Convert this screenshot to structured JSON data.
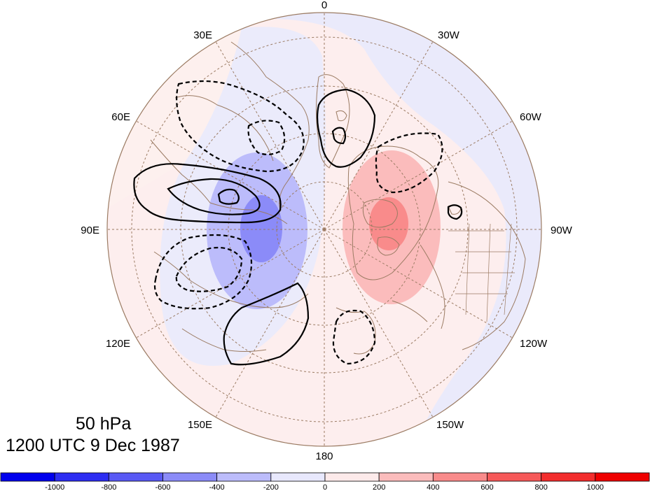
{
  "map": {
    "projection": "north-polar-stereographic",
    "lon_labels": [
      "0",
      "30W",
      "60W",
      "90W",
      "120W",
      "150W",
      "180",
      "150E",
      "120E",
      "90E",
      "60E",
      "30E"
    ],
    "colors": {
      "coast": "#9b7b63",
      "grid": "#9b7b63",
      "contour": "#000000",
      "negative_fill": "#e8e8fb",
      "positive_fill": "#fdeeee"
    }
  },
  "titles": {
    "level": "50 hPa",
    "time": "1200 UTC 9 Dec 1987"
  },
  "colorbar": {
    "tick_labels": [
      "-1000",
      "-800",
      "-600",
      "-400",
      "-200",
      "0",
      "200",
      "400",
      "600",
      "800",
      "1000"
    ],
    "colors": [
      "#0000ee",
      "#2d2df2",
      "#5959f5",
      "#8b8bf8",
      "#bcbcfb",
      "#e8e8fd",
      "#fdeaea",
      "#fbbcbc",
      "#f98b8b",
      "#f65959",
      "#f32d2d",
      "#ef0000"
    ]
  }
}
